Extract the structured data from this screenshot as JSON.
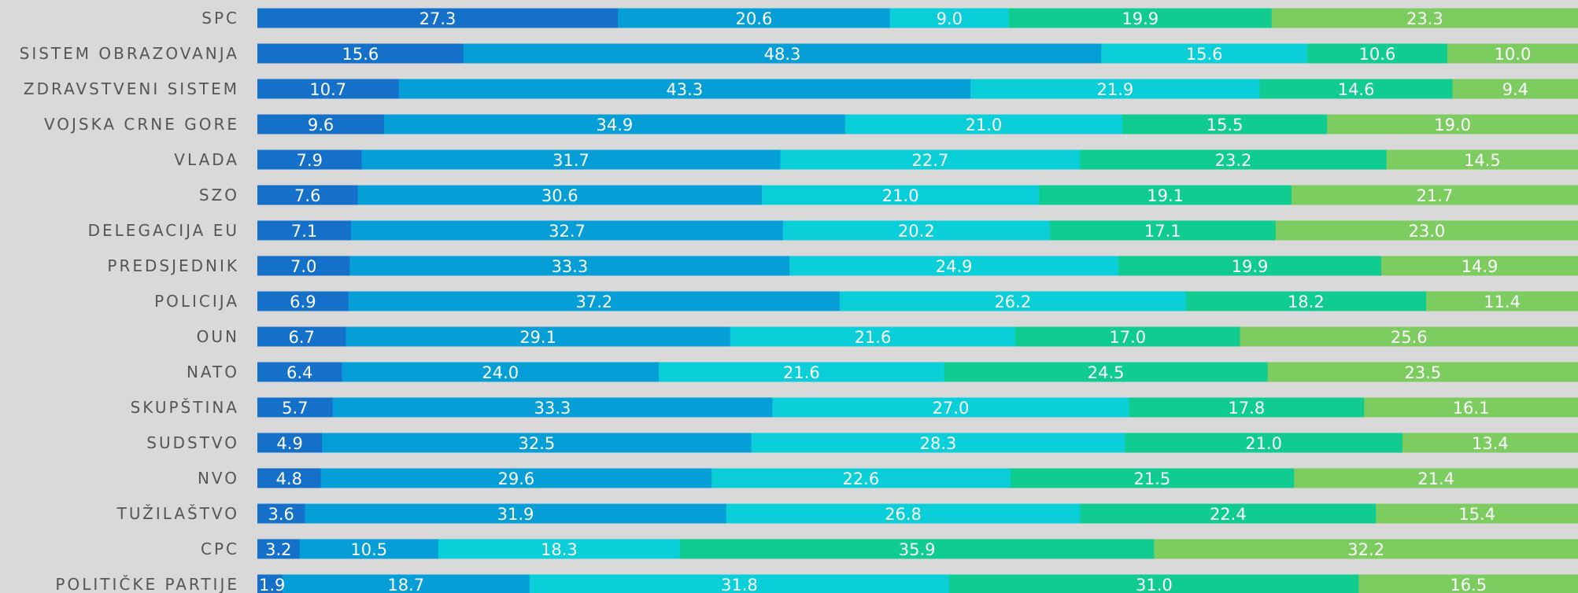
{
  "chart_data": {
    "type": "bar",
    "orientation": "horizontal",
    "stacked": true,
    "categories": [
      "SPC",
      "SISTEM OBRAZOVANJA",
      "ZDRAVSTVENI SISTEM",
      "VOJSKA CRNE GORE",
      "VLADA",
      "SZO",
      "DELEGACIJA EU",
      "PREDSJEDNIK",
      "POLICIJA",
      "OUN",
      "NATO",
      "SKUPŠTINA",
      "SUDSTVO",
      "NVO",
      "TUŽILAŠTVO",
      "CPC",
      "POLITIČKE PARTIJE"
    ],
    "series": [
      {
        "color": "#1470c8",
        "values": [
          27.3,
          15.6,
          10.7,
          9.6,
          7.9,
          7.6,
          7.1,
          7.0,
          6.9,
          6.7,
          6.4,
          5.7,
          4.9,
          4.8,
          3.6,
          3.2,
          1.9
        ]
      },
      {
        "color": "#069ed6",
        "values": [
          20.6,
          48.3,
          43.3,
          34.9,
          31.7,
          30.6,
          32.7,
          33.3,
          37.2,
          29.1,
          24.0,
          33.3,
          32.5,
          29.6,
          31.9,
          10.5,
          18.7
        ]
      },
      {
        "color": "#0bcfd8",
        "values": [
          9.0,
          15.6,
          21.9,
          21.0,
          22.7,
          21.0,
          20.2,
          24.9,
          26.2,
          21.6,
          21.6,
          27.0,
          28.3,
          22.6,
          26.8,
          18.3,
          31.8
        ]
      },
      {
        "color": "#10cc90",
        "values": [
          19.9,
          10.6,
          14.6,
          15.5,
          23.2,
          19.1,
          17.1,
          19.9,
          18.2,
          17.0,
          24.5,
          17.8,
          21.0,
          21.5,
          22.4,
          35.9,
          31.0
        ]
      },
      {
        "color": "#7ccc60",
        "values": [
          23.3,
          10.0,
          9.4,
          19.0,
          14.5,
          21.7,
          23.0,
          14.9,
          11.4,
          25.6,
          23.5,
          16.1,
          13.4,
          21.4,
          15.4,
          32.2,
          16.5
        ]
      }
    ],
    "xlim": [
      0,
      100
    ],
    "grid": false,
    "legend": "none"
  }
}
